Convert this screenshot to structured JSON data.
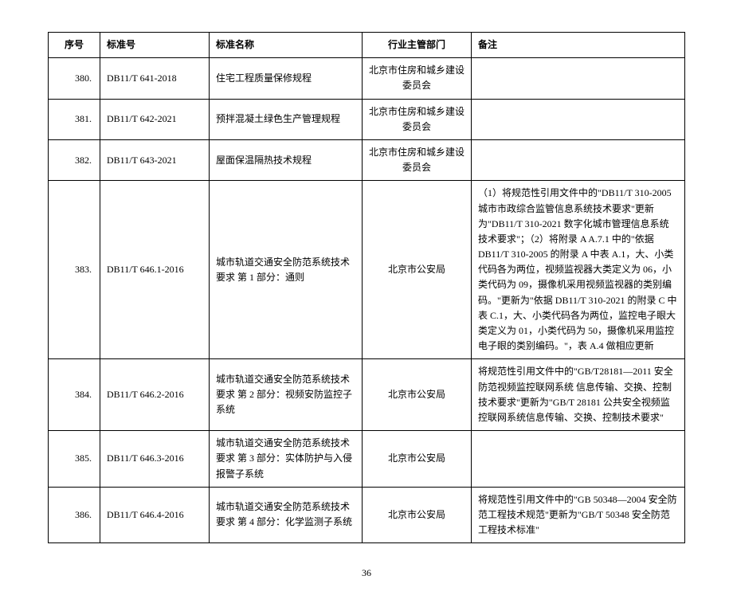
{
  "headers": {
    "seq": "序号",
    "std": "标准号",
    "name": "标准名称",
    "dept": "行业主管部门",
    "note": "备注"
  },
  "rows": [
    {
      "seq": "380.",
      "std": "DB11/T 641-2018",
      "name": "住宅工程质量保修规程",
      "dept": "北京市住房和城乡建设委员会",
      "note": ""
    },
    {
      "seq": "381.",
      "std": "DB11/T 642-2021",
      "name": "预拌混凝土绿色生产管理规程",
      "dept": "北京市住房和城乡建设委员会",
      "note": ""
    },
    {
      "seq": "382.",
      "std": "DB11/T 643-2021",
      "name": "屋面保温隔热技术规程",
      "dept": "北京市住房和城乡建设委员会",
      "note": ""
    },
    {
      "seq": "383.",
      "std": "DB11/T 646.1-2016",
      "name": "城市轨道交通安全防范系统技术要求 第 1 部分：通则",
      "dept": "北京市公安局",
      "note": "（1）将规范性引用文件中的\"DB11/T 310-2005 城市市政综合监管信息系统技术要求\"更新为\"DB11/T 310-2021 数字化城市管理信息系统技术要求\"；（2）将附录 A A.7.1 中的\"依据 DB11/T 310-2005 的附录 A 中表 A.1，大、小类代码各为两位，视频监视器大类定义为 06，小类代码为 09，摄像机采用视频监视器的类别编码。\"更新为\"依据 DB11/T 310-2021 的附录 C 中表 C.1，大、小类代码各为两位，监控电子眼大类定义为 01，小类代码为 50，摄像机采用监控电子眼的类别编码。\"，表 A.4 做相应更新"
    },
    {
      "seq": "384.",
      "std": "DB11/T 646.2-2016",
      "name": "城市轨道交通安全防范系统技术要求 第 2 部分：视频安防监控子系统",
      "dept": "北京市公安局",
      "note": "将规范性引用文件中的\"GB/T28181—2011 安全防范视频监控联网系统 信息传输、交换、控制技术要求\"更新为\"GB/T 28181 公共安全视频监控联网系统信息传输、交换、控制技术要求\""
    },
    {
      "seq": "385.",
      "std": "DB11/T 646.3-2016",
      "name": "城市轨道交通安全防范系统技术要求 第 3 部分：实体防护与入侵报警子系统",
      "dept": "北京市公安局",
      "note": ""
    },
    {
      "seq": "386.",
      "std": "DB11/T 646.4-2016",
      "name": "城市轨道交通安全防范系统技术要求 第 4 部分：化学监测子系统",
      "dept": "北京市公安局",
      "note": "将规范性引用文件中的\"GB 50348—2004 安全防范工程技术规范\"更新为\"GB/T 50348 安全防范工程技术标准\""
    }
  ],
  "page_number": "36"
}
